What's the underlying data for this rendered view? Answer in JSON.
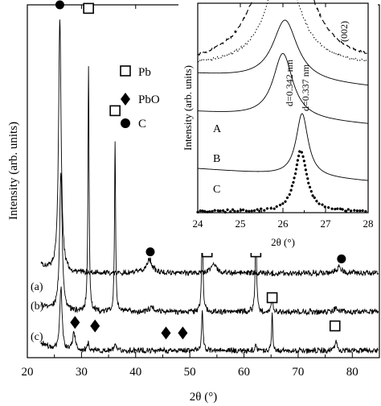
{
  "chart_data": [
    {
      "type": "line",
      "xlabel": "2θ (°)",
      "ylabel": "Intensity (arb. units)",
      "xlim": [
        20,
        85
      ],
      "xticks": [
        20,
        30,
        40,
        50,
        60,
        70,
        80
      ],
      "curve_labels": [
        "(a)",
        "(b)",
        "(c)"
      ],
      "legend": [
        {
          "symbol": "open-square",
          "label": "Pb"
        },
        {
          "symbol": "filled-diamond",
          "label": "PbO"
        },
        {
          "symbol": "filled-circle",
          "label": "C"
        }
      ],
      "series": [
        {
          "label": "(a)",
          "baseline": 0.24,
          "peaks": [
            [
              26.0,
              0.72,
              0.28
            ],
            [
              42.5,
              0.04,
              0.6
            ],
            [
              54.4,
              0.025,
              0.6
            ],
            [
              77.5,
              0.015,
              0.6
            ]
          ]
        },
        {
          "label": "(b)",
          "baseline": 0.13,
          "peaks": [
            [
              26.2,
              0.4,
              0.28
            ],
            [
              31.3,
              0.7,
              0.12
            ],
            [
              36.2,
              0.48,
              0.12
            ],
            [
              43.0,
              0.012,
              0.6
            ],
            [
              52.3,
              0.26,
              0.14
            ],
            [
              62.2,
              0.26,
              0.14
            ],
            [
              65.2,
              0.03,
              0.2
            ],
            [
              77.0,
              0.015,
              0.3
            ]
          ]
        },
        {
          "label": "(c)",
          "baseline": 0.02,
          "peaks": [
            [
              26.2,
              0.18,
              0.25
            ],
            [
              28.6,
              0.05,
              0.3
            ],
            [
              31.3,
              0.02,
              0.2
            ],
            [
              36.2,
              0.015,
              0.2
            ],
            [
              52.3,
              0.12,
              0.15
            ],
            [
              62.2,
              0.02,
              0.2
            ],
            [
              65.2,
              0.11,
              0.12
            ],
            [
              77.0,
              0.03,
              0.2
            ]
          ]
        }
      ],
      "markers": [
        {
          "symbol": "filled-circle",
          "x": 26.0,
          "y": 1.0
        },
        {
          "symbol": "open-square",
          "x": 31.3,
          "y": 0.99
        },
        {
          "symbol": "open-square",
          "x": 36.2,
          "y": 0.7
        },
        {
          "symbol": "filled-circle",
          "x": 42.7,
          "y": 0.3
        },
        {
          "symbol": "open-square",
          "x": 53.2,
          "y": 0.3
        },
        {
          "symbol": "filled-circle",
          "x": 54.8,
          "y": 0.31
        },
        {
          "symbol": "open-square",
          "x": 62.2,
          "y": 0.3
        },
        {
          "symbol": "filled-circle",
          "x": 78.0,
          "y": 0.28
        },
        {
          "symbol": "open-square",
          "x": 65.2,
          "y": 0.17
        },
        {
          "symbol": "open-square",
          "x": 76.8,
          "y": 0.09
        },
        {
          "symbol": "filled-diamond",
          "x": 28.8,
          "y": 0.1
        },
        {
          "symbol": "filled-diamond",
          "x": 32.5,
          "y": 0.09
        },
        {
          "symbol": "filled-diamond",
          "x": 45.6,
          "y": 0.07
        },
        {
          "symbol": "filled-diamond",
          "x": 48.7,
          "y": 0.07
        }
      ]
    },
    {
      "type": "line",
      "xlabel": "2θ (°)",
      "ylabel": "Intensity (arb. units)",
      "xlim": [
        24,
        28
      ],
      "xticks": [
        24,
        25,
        26,
        27,
        28
      ],
      "curve_labels": [
        "A",
        "B",
        "C"
      ],
      "annotations": [
        "d=0.342 nm",
        "d=0.337 nm",
        "(002)"
      ],
      "series": [
        {
          "label": "A",
          "style": "solid",
          "baseline": 0.66,
          "slope": 0.015,
          "peaks": [
            [
              26.05,
              0.29,
              0.35
            ]
          ]
        },
        {
          "label": "B",
          "style": "solid",
          "baseline": 0.48,
          "slope": 0.015,
          "peaks": [
            [
              26.0,
              0.31,
              0.28
            ]
          ]
        },
        {
          "label": "C",
          "style": "solid",
          "baseline": 0.21,
          "slope": 0.015,
          "peaks": [
            [
              26.45,
              0.3,
              0.17
            ]
          ]
        },
        {
          "label": "",
          "style": "dashed",
          "baseline": 0.7,
          "peaks": [
            [
              26.0,
              0.98,
              0.5
            ]
          ]
        },
        {
          "label": "",
          "style": "dotted-fine",
          "baseline": 0.7,
          "peaks": [
            [
              26.0,
              0.5,
              0.45
            ]
          ]
        },
        {
          "label": "",
          "style": "dotted-heavy",
          "baseline": 0.005,
          "peaks": [
            [
              26.42,
              0.29,
              0.17
            ]
          ]
        }
      ]
    }
  ]
}
